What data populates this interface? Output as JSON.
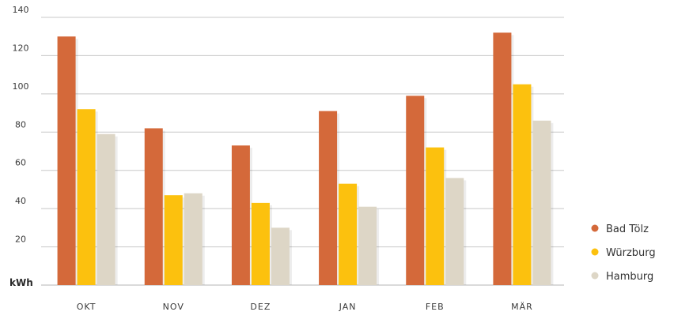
{
  "chart_data": {
    "type": "bar",
    "ylabel": "kWh",
    "ylim": [
      0,
      140
    ],
    "yticks": [
      20,
      40,
      60,
      80,
      100,
      120,
      140
    ],
    "grid": true,
    "legend_position": "right",
    "categories": [
      "OKT",
      "NOV",
      "DEZ",
      "JAN",
      "FEB",
      "MÄR"
    ],
    "series": [
      {
        "name": "Bad Tölz",
        "color": "#d4693a",
        "values": [
          130,
          82,
          73,
          91,
          99,
          132
        ]
      },
      {
        "name": "Würzburg",
        "color": "#fcc10e",
        "values": [
          92,
          47,
          43,
          53,
          72,
          105
        ]
      },
      {
        "name": "Hamburg",
        "color": "#ddd6c6",
        "values": [
          79,
          48,
          30,
          41,
          56,
          86
        ]
      }
    ]
  }
}
